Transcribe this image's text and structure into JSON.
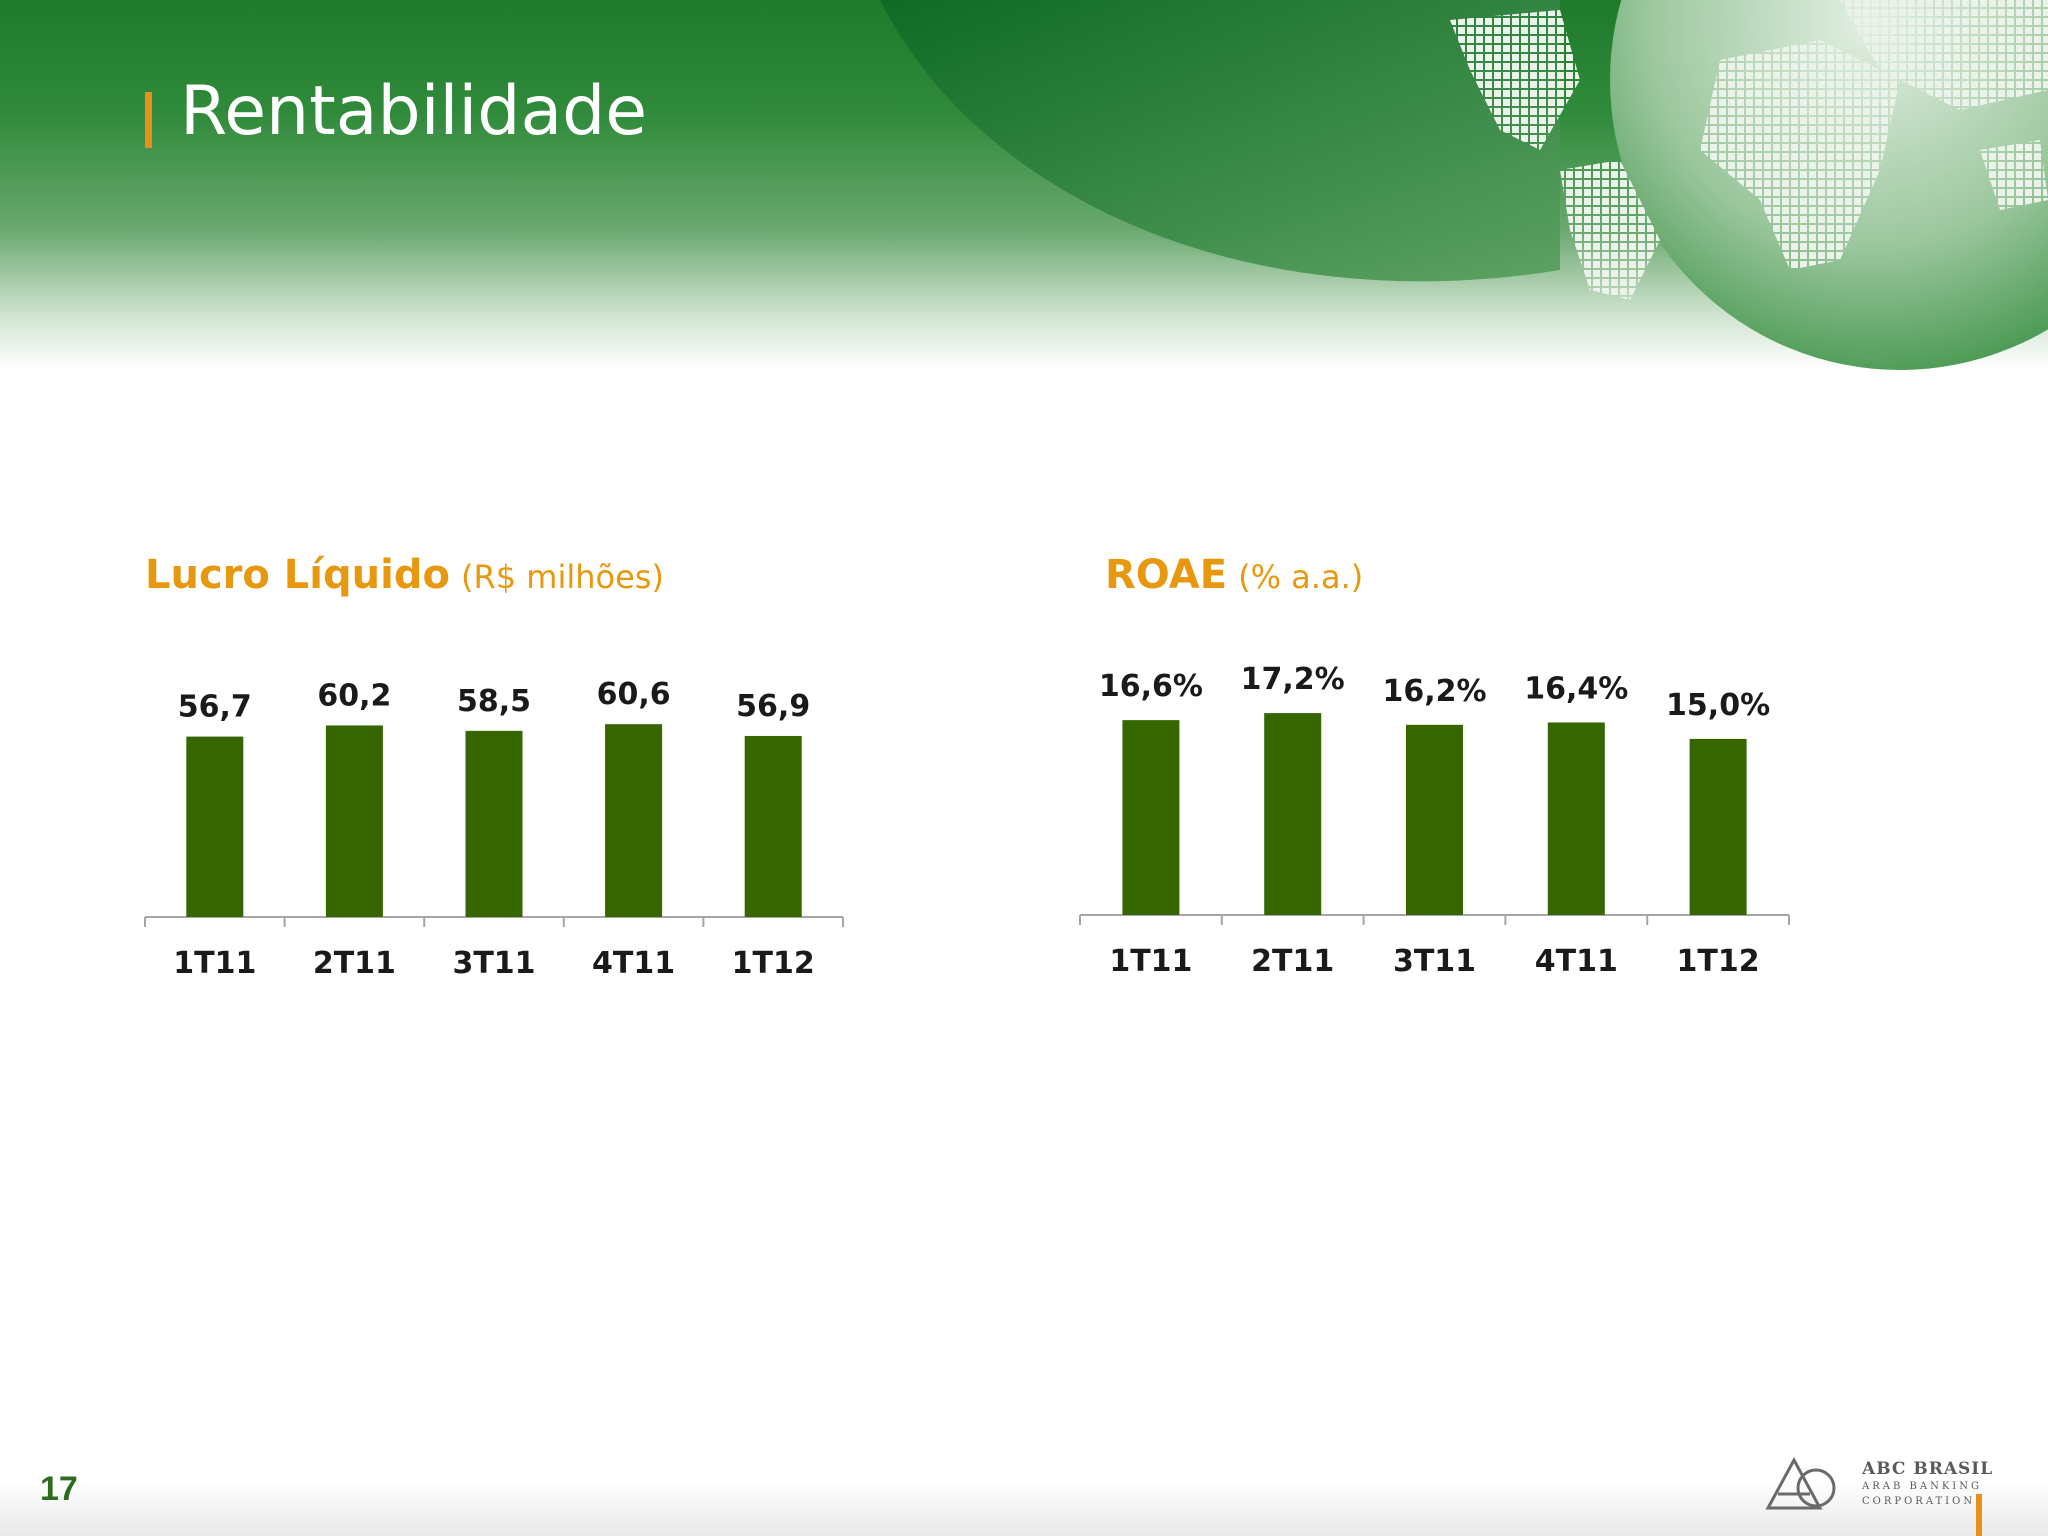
{
  "slide": {
    "title": "Rentabilidade",
    "page_number": "17"
  },
  "logo": {
    "name": "ABC BRASIL",
    "line1": "ARAB BANKING",
    "line2": "CORPORATION"
  },
  "colors": {
    "bar": "#356600",
    "heading": "#e8980e",
    "title_accent": "#e8901c",
    "banner_green": "#1f7a2c"
  },
  "chart_data": [
    {
      "type": "bar",
      "title": "Lucro Líquido",
      "title_unit": "(R$ milhões)",
      "categories": [
        "1T11",
        "2T11",
        "3T11",
        "4T11",
        "1T12"
      ],
      "values": [
        56.7,
        60.2,
        58.5,
        60.6,
        56.9
      ],
      "data_labels": [
        "56,7",
        "60,2",
        "58,5",
        "60,6",
        "56,9"
      ],
      "ylim": [
        0,
        66
      ],
      "grid": false,
      "legend": "none"
    },
    {
      "type": "bar",
      "title": "ROAE",
      "title_unit": "(% a.a.)",
      "categories": [
        "1T11",
        "2T11",
        "3T11",
        "4T11",
        "1T12"
      ],
      "values": [
        16.6,
        17.2,
        16.2,
        16.4,
        15.0
      ],
      "data_labels": [
        "16,6%",
        "17,2%",
        "16,2%",
        "16,4%",
        "15,0%"
      ],
      "ylim": [
        0,
        18.4
      ],
      "grid": false,
      "legend": "none"
    }
  ]
}
